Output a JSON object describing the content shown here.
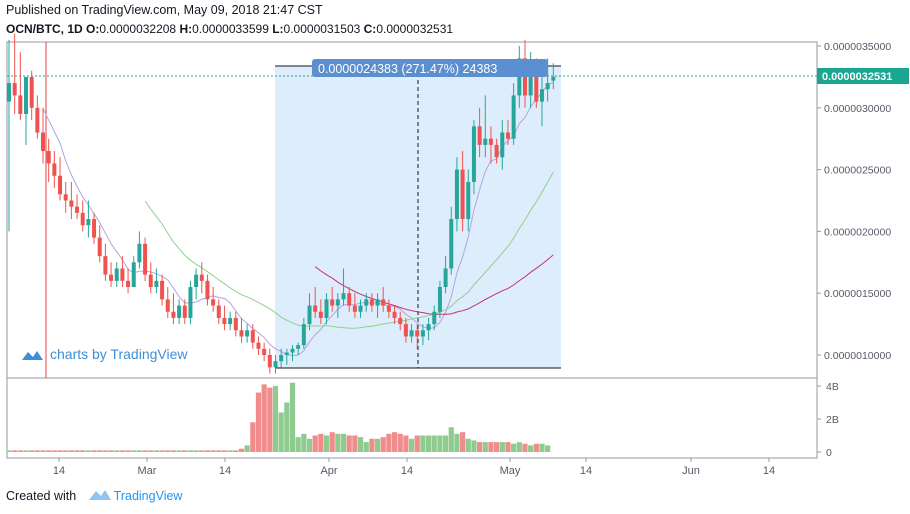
{
  "header": {
    "published": "Published on TradingView.com, May 09, 2018 21:47 CST",
    "symbol": "OCN/BTC, 1D",
    "ohlc": {
      "o_label": "O:",
      "o": "0.0000032208",
      "h_label": "H:",
      "h": "0.0000033599",
      "l_label": "L:",
      "l": "0.0000031503",
      "c_label": "C:",
      "c": "0.0000032531"
    }
  },
  "watermark": "charts by TradingView",
  "footer": {
    "created_with": "Created with",
    "brand": "TradingView"
  },
  "measure": {
    "label": "0.0000024383 (271.47%) 24383"
  },
  "colors": {
    "up": "#26a69a",
    "down": "#ef5350",
    "up_vol": "#8fcb8f",
    "down_vol": "#f08c8c",
    "ma_fast": "#b3a3e0",
    "ma_mid": "#8fd08f",
    "ma_slow": "#c2337a",
    "measure_bg": "#deedfc",
    "last_price_bg": "#1aa690"
  },
  "chart_data": {
    "type": "candlestick",
    "price_axis": {
      "ticks": [
        "0.0000035000",
        "0.0000030000",
        "0.0000025000",
        "0.0000020000",
        "0.0000015000",
        "0.0000010000"
      ],
      "tick_values": [
        3.5e-06,
        3e-06,
        2.5e-06,
        2e-06,
        1.5e-06,
        1e-06
      ],
      "last_price": "0.0000032531",
      "last_price_value": 3.2531e-06
    },
    "volume_axis": {
      "ticks": [
        "4B",
        "2B",
        "0"
      ],
      "tick_values": [
        4,
        2,
        0
      ]
    },
    "time_axis": {
      "ticks": [
        "14",
        "Mar",
        "14",
        "Apr",
        "14",
        "May",
        "14",
        "Jun",
        "14"
      ]
    },
    "candles": [
      {
        "o": 3.05,
        "h": 3.55,
        "l": 2.0,
        "c": 3.2
      },
      {
        "o": 3.2,
        "h": 3.6,
        "l": 2.95,
        "c": 3.1
      },
      {
        "o": 3.1,
        "h": 3.45,
        "l": 2.9,
        "c": 2.95
      },
      {
        "o": 2.95,
        "h": 3.25,
        "l": 2.7,
        "c": 3.25
      },
      {
        "o": 3.25,
        "h": 3.3,
        "l": 2.9,
        "c": 3.0
      },
      {
        "o": 3.0,
        "h": 3.1,
        "l": 2.75,
        "c": 2.8
      },
      {
        "o": 2.8,
        "h": 3.0,
        "l": 2.55,
        "c": 2.65
      },
      {
        "o": 2.65,
        "h": 2.75,
        "l": 2.4,
        "c": 2.55
      },
      {
        "o": 2.55,
        "h": 2.65,
        "l": 2.35,
        "c": 2.45
      },
      {
        "o": 2.45,
        "h": 2.6,
        "l": 2.25,
        "c": 2.3
      },
      {
        "o": 2.3,
        "h": 2.4,
        "l": 2.15,
        "c": 2.25
      },
      {
        "o": 2.25,
        "h": 2.4,
        "l": 2.1,
        "c": 2.2
      },
      {
        "o": 2.2,
        "h": 2.3,
        "l": 2.1,
        "c": 2.15
      },
      {
        "o": 2.15,
        "h": 2.25,
        "l": 2.0,
        "c": 2.05
      },
      {
        "o": 2.05,
        "h": 2.25,
        "l": 1.95,
        "c": 2.1
      },
      {
        "o": 2.1,
        "h": 2.15,
        "l": 1.9,
        "c": 1.95
      },
      {
        "o": 1.95,
        "h": 2.05,
        "l": 1.75,
        "c": 1.8
      },
      {
        "o": 1.8,
        "h": 1.9,
        "l": 1.6,
        "c": 1.65
      },
      {
        "o": 1.65,
        "h": 1.75,
        "l": 1.55,
        "c": 1.6
      },
      {
        "o": 1.6,
        "h": 1.75,
        "l": 1.55,
        "c": 1.7
      },
      {
        "o": 1.7,
        "h": 1.8,
        "l": 1.55,
        "c": 1.6
      },
      {
        "o": 1.6,
        "h": 1.7,
        "l": 1.5,
        "c": 1.55
      },
      {
        "o": 1.55,
        "h": 1.8,
        "l": 1.55,
        "c": 1.75
      },
      {
        "o": 1.75,
        "h": 2.0,
        "l": 1.7,
        "c": 1.9
      },
      {
        "o": 1.9,
        "h": 1.95,
        "l": 1.6,
        "c": 1.65
      },
      {
        "o": 1.65,
        "h": 1.75,
        "l": 1.5,
        "c": 1.55
      },
      {
        "o": 1.55,
        "h": 1.7,
        "l": 1.5,
        "c": 1.6
      },
      {
        "o": 1.6,
        "h": 1.65,
        "l": 1.4,
        "c": 1.45
      },
      {
        "o": 1.45,
        "h": 1.55,
        "l": 1.3,
        "c": 1.35
      },
      {
        "o": 1.35,
        "h": 1.5,
        "l": 1.25,
        "c": 1.3
      },
      {
        "o": 1.3,
        "h": 1.45,
        "l": 1.25,
        "c": 1.4
      },
      {
        "o": 1.4,
        "h": 1.45,
        "l": 1.25,
        "c": 1.3
      },
      {
        "o": 1.3,
        "h": 1.6,
        "l": 1.25,
        "c": 1.55
      },
      {
        "o": 1.55,
        "h": 1.7,
        "l": 1.45,
        "c": 1.65
      },
      {
        "o": 1.65,
        "h": 1.75,
        "l": 1.5,
        "c": 1.6
      },
      {
        "o": 1.6,
        "h": 1.65,
        "l": 1.4,
        "c": 1.45
      },
      {
        "o": 1.45,
        "h": 1.55,
        "l": 1.35,
        "c": 1.4
      },
      {
        "o": 1.4,
        "h": 1.45,
        "l": 1.25,
        "c": 1.3
      },
      {
        "o": 1.3,
        "h": 1.4,
        "l": 1.2,
        "c": 1.25
      },
      {
        "o": 1.25,
        "h": 1.35,
        "l": 1.2,
        "c": 1.3
      },
      {
        "o": 1.3,
        "h": 1.35,
        "l": 1.15,
        "c": 1.2
      },
      {
        "o": 1.2,
        "h": 1.3,
        "l": 1.1,
        "c": 1.15
      },
      {
        "o": 1.15,
        "h": 1.25,
        "l": 1.1,
        "c": 1.2
      },
      {
        "o": 1.2,
        "h": 1.25,
        "l": 1.05,
        "c": 1.1
      },
      {
        "o": 1.1,
        "h": 1.15,
        "l": 1.0,
        "c": 1.05
      },
      {
        "o": 1.05,
        "h": 1.1,
        "l": 0.95,
        "c": 1.0
      },
      {
        "o": 1.0,
        "h": 1.05,
        "l": 0.85,
        "c": 0.9
      },
      {
        "o": 0.9,
        "h": 1.0,
        "l": 0.85,
        "c": 0.95
      },
      {
        "o": 0.95,
        "h": 1.05,
        "l": 0.9,
        "c": 1.0
      },
      {
        "o": 1.0,
        "h": 1.05,
        "l": 0.92,
        "c": 1.02
      },
      {
        "o": 1.02,
        "h": 1.08,
        "l": 0.95,
        "c": 1.05
      },
      {
        "o": 1.05,
        "h": 1.1,
        "l": 1.0,
        "c": 1.08
      },
      {
        "o": 1.08,
        "h": 1.3,
        "l": 1.05,
        "c": 1.25
      },
      {
        "o": 1.25,
        "h": 1.5,
        "l": 1.2,
        "c": 1.4
      },
      {
        "o": 1.4,
        "h": 1.55,
        "l": 1.3,
        "c": 1.35
      },
      {
        "o": 1.35,
        "h": 1.45,
        "l": 1.25,
        "c": 1.3
      },
      {
        "o": 1.3,
        "h": 1.5,
        "l": 1.25,
        "c": 1.45
      },
      {
        "o": 1.45,
        "h": 1.55,
        "l": 1.35,
        "c": 1.4
      },
      {
        "o": 1.4,
        "h": 1.5,
        "l": 1.3,
        "c": 1.45
      },
      {
        "o": 1.45,
        "h": 1.7,
        "l": 1.4,
        "c": 1.5
      },
      {
        "o": 1.5,
        "h": 1.55,
        "l": 1.35,
        "c": 1.4
      },
      {
        "o": 1.4,
        "h": 1.5,
        "l": 1.3,
        "c": 1.35
      },
      {
        "o": 1.35,
        "h": 1.45,
        "l": 1.3,
        "c": 1.4
      },
      {
        "o": 1.4,
        "h": 1.5,
        "l": 1.35,
        "c": 1.45
      },
      {
        "o": 1.45,
        "h": 1.5,
        "l": 1.35,
        "c": 1.4
      },
      {
        "o": 1.4,
        "h": 1.5,
        "l": 1.3,
        "c": 1.45
      },
      {
        "o": 1.45,
        "h": 1.55,
        "l": 1.35,
        "c": 1.4
      },
      {
        "o": 1.4,
        "h": 1.45,
        "l": 1.3,
        "c": 1.35
      },
      {
        "o": 1.35,
        "h": 1.4,
        "l": 1.25,
        "c": 1.3
      },
      {
        "o": 1.3,
        "h": 1.35,
        "l": 1.2,
        "c": 1.25
      },
      {
        "o": 1.25,
        "h": 1.3,
        "l": 1.1,
        "c": 1.15
      },
      {
        "o": 1.15,
        "h": 1.25,
        "l": 1.1,
        "c": 1.2
      },
      {
        "o": 1.2,
        "h": 1.25,
        "l": 1.05,
        "c": 1.15
      },
      {
        "o": 1.15,
        "h": 1.25,
        "l": 1.08,
        "c": 1.2
      },
      {
        "o": 1.2,
        "h": 1.3,
        "l": 1.12,
        "c": 1.25
      },
      {
        "o": 1.25,
        "h": 1.4,
        "l": 1.2,
        "c": 1.35
      },
      {
        "o": 1.35,
        "h": 1.6,
        "l": 1.3,
        "c": 1.55
      },
      {
        "o": 1.55,
        "h": 1.8,
        "l": 1.5,
        "c": 1.7
      },
      {
        "o": 1.7,
        "h": 2.2,
        "l": 1.65,
        "c": 2.1
      },
      {
        "o": 2.1,
        "h": 2.6,
        "l": 2.0,
        "c": 2.5
      },
      {
        "o": 2.5,
        "h": 2.65,
        "l": 2.0,
        "c": 2.1
      },
      {
        "o": 2.1,
        "h": 2.5,
        "l": 2.0,
        "c": 2.4
      },
      {
        "o": 2.4,
        "h": 2.9,
        "l": 2.3,
        "c": 2.85
      },
      {
        "o": 2.85,
        "h": 3.0,
        "l": 2.6,
        "c": 2.7
      },
      {
        "o": 2.7,
        "h": 3.1,
        "l": 2.6,
        "c": 2.75
      },
      {
        "o": 2.75,
        "h": 2.85,
        "l": 2.55,
        "c": 2.7
      },
      {
        "o": 2.7,
        "h": 2.75,
        "l": 2.55,
        "c": 2.6
      },
      {
        "o": 2.6,
        "h": 2.9,
        "l": 2.5,
        "c": 2.8
      },
      {
        "o": 2.8,
        "h": 2.9,
        "l": 2.7,
        "c": 2.75
      },
      {
        "o": 2.75,
        "h": 3.2,
        "l": 2.7,
        "c": 3.1
      },
      {
        "o": 3.1,
        "h": 3.5,
        "l": 3.0,
        "c": 3.4
      },
      {
        "o": 3.4,
        "h": 3.55,
        "l": 3.0,
        "c": 3.1
      },
      {
        "o": 3.1,
        "h": 3.45,
        "l": 3.0,
        "c": 3.3
      },
      {
        "o": 3.3,
        "h": 3.4,
        "l": 3.0,
        "c": 3.05
      },
      {
        "o": 3.05,
        "h": 3.35,
        "l": 2.85,
        "c": 3.15
      },
      {
        "o": 3.15,
        "h": 3.4,
        "l": 3.05,
        "c": 3.2
      },
      {
        "o": 3.22,
        "h": 3.36,
        "l": 3.15,
        "c": 3.25
      }
    ],
    "volumes": [
      0.1,
      0.1,
      0.1,
      0.1,
      0.1,
      0.1,
      0.1,
      0.1,
      0.1,
      0.1,
      0.1,
      0.1,
      0.1,
      0.1,
      0.1,
      0.1,
      0.1,
      0.1,
      0.1,
      0.1,
      0.1,
      0.1,
      0.1,
      0.1,
      0.1,
      0.1,
      0.1,
      0.1,
      0.1,
      0.1,
      0.1,
      0.1,
      0.1,
      0.1,
      0.1,
      0.1,
      0.1,
      0.1,
      0.1,
      0.1,
      0.1,
      0.2,
      0.4,
      1.8,
      3.6,
      4.1,
      3.9,
      4.0,
      2.4,
      3.0,
      4.2,
      0.9,
      1.1,
      0.8,
      1.0,
      1.1,
      1.0,
      1.2,
      1.1,
      1.1,
      1.0,
      1.0,
      0.9,
      0.6,
      0.8,
      0.8,
      0.9,
      1.1,
      1.2,
      1.1,
      1.0,
      0.8,
      1.0,
      1.0,
      1.0,
      1.0,
      1.0,
      1.0,
      1.5,
      1.1,
      1.2,
      0.8,
      0.7,
      0.6,
      0.6,
      0.6,
      0.6,
      0.6,
      0.6,
      0.5,
      0.6,
      0.5,
      0.4,
      0.5,
      0.5,
      0.4
    ]
  }
}
